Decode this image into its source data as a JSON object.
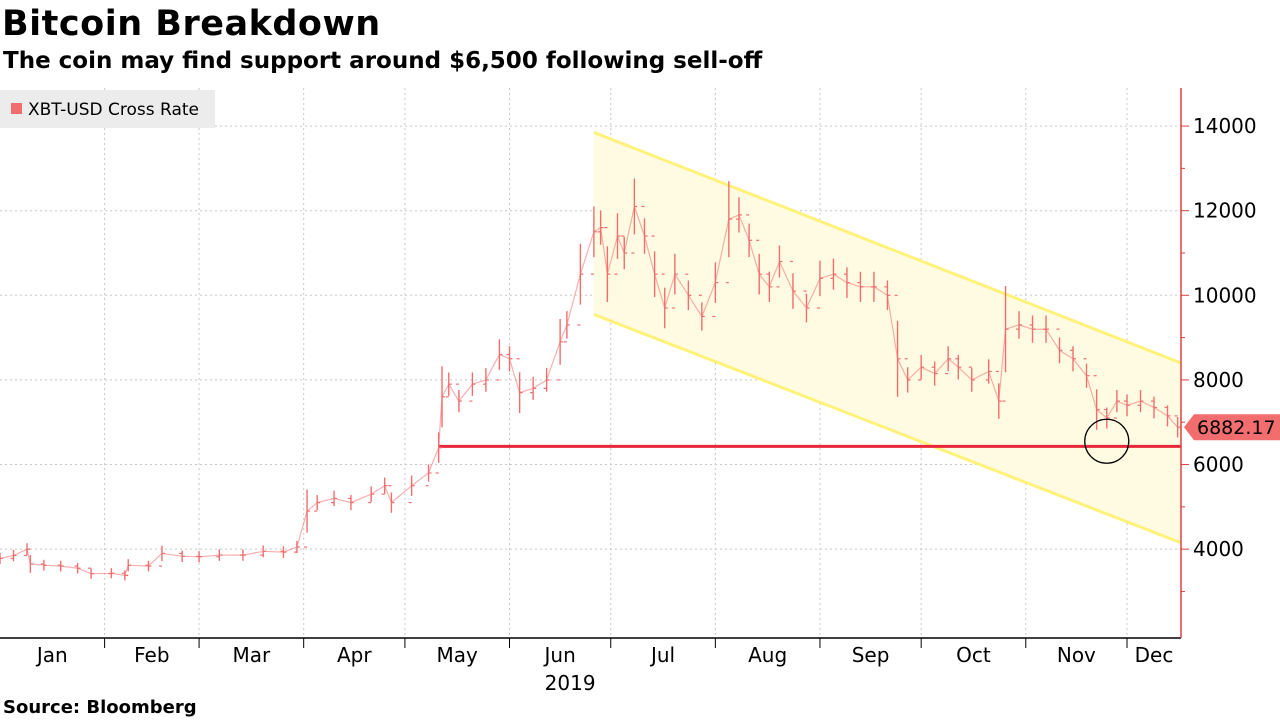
{
  "title": "Bitcoin Breakdown",
  "subtitle": "The coin may find support around $6,500 following sell-off",
  "source": "Source: Bloomberg",
  "colors": {
    "series": "#f26d6d",
    "support_line": "#e8273a",
    "channel_line": "#fff27a",
    "channel_fill": "#fffbe3",
    "grid": "#c8c8c8"
  },
  "chart_data": {
    "type": "line",
    "style": "ohlc-bars",
    "legend": {
      "position": "top-left",
      "entries": [
        "XBT-USD Cross Rate"
      ]
    },
    "year_label": "2019",
    "x_ticks": [
      "Jan",
      "Feb",
      "Mar",
      "Apr",
      "May",
      "Jun",
      "Jul",
      "Aug",
      "Sep",
      "Oct",
      "Nov",
      "Dec"
    ],
    "y_ticks": [
      "4000",
      "6000",
      "8000",
      "10000",
      "12000",
      "14000"
    ],
    "ylim": [
      1900,
      14900
    ],
    "xlim": [
      "2019-01-01",
      "2019-12-17"
    ],
    "grid": true,
    "last_value": "6882.17",
    "support_level": 6430,
    "channel": {
      "upper": {
        "start": [
          "2019-06-26",
          13850
        ],
        "end": [
          "2019-12-17",
          8400
        ]
      },
      "lower": {
        "start": [
          "2019-06-26",
          9550
        ],
        "end": [
          "2019-12-17",
          4150
        ]
      }
    },
    "annotations": [
      {
        "type": "circle",
        "date": "2019-11-25",
        "value": 6550
      }
    ],
    "series": [
      {
        "name": "XBT-USD Cross Rate",
        "points": [
          [
            "2019-01-01",
            3780
          ],
          [
            "2019-01-05",
            3850
          ],
          [
            "2019-01-09",
            4000
          ],
          [
            "2019-01-10",
            3650
          ],
          [
            "2019-01-14",
            3620
          ],
          [
            "2019-01-19",
            3600
          ],
          [
            "2019-01-24",
            3550
          ],
          [
            "2019-01-28",
            3420
          ],
          [
            "2019-02-03",
            3430
          ],
          [
            "2019-02-07",
            3380
          ],
          [
            "2019-02-08",
            3620
          ],
          [
            "2019-02-14",
            3600
          ],
          [
            "2019-02-18",
            3900
          ],
          [
            "2019-02-24",
            3830
          ],
          [
            "2019-03-01",
            3820
          ],
          [
            "2019-03-07",
            3860
          ],
          [
            "2019-03-14",
            3860
          ],
          [
            "2019-03-20",
            3950
          ],
          [
            "2019-03-26",
            3930
          ],
          [
            "2019-03-30",
            4050
          ],
          [
            "2019-04-02",
            4900
          ],
          [
            "2019-04-05",
            5100
          ],
          [
            "2019-04-10",
            5200
          ],
          [
            "2019-04-15",
            5100
          ],
          [
            "2019-04-21",
            5300
          ],
          [
            "2019-04-25",
            5500
          ],
          [
            "2019-04-27",
            5100
          ],
          [
            "2019-05-03",
            5500
          ],
          [
            "2019-05-08",
            5800
          ],
          [
            "2019-05-11",
            6400
          ],
          [
            "2019-05-12",
            7600
          ],
          [
            "2019-05-14",
            7900
          ],
          [
            "2019-05-17",
            7500
          ],
          [
            "2019-05-21",
            7900
          ],
          [
            "2019-05-25",
            8000
          ],
          [
            "2019-05-29",
            8600
          ],
          [
            "2019-06-01",
            8500
          ],
          [
            "2019-06-04",
            7700
          ],
          [
            "2019-06-08",
            7800
          ],
          [
            "2019-06-12",
            8000
          ],
          [
            "2019-06-16",
            8900
          ],
          [
            "2019-06-18",
            9300
          ],
          [
            "2019-06-22",
            10500
          ],
          [
            "2019-06-26",
            11500
          ],
          [
            "2019-06-28",
            11600
          ],
          [
            "2019-06-30",
            10500
          ],
          [
            "2019-07-03",
            11400
          ],
          [
            "2019-07-05",
            11000
          ],
          [
            "2019-07-08",
            12100
          ],
          [
            "2019-07-11",
            11400
          ],
          [
            "2019-07-14",
            10500
          ],
          [
            "2019-07-17",
            9700
          ],
          [
            "2019-07-20",
            10500
          ],
          [
            "2019-07-24",
            10000
          ],
          [
            "2019-07-28",
            9500
          ],
          [
            "2019-08-01",
            10300
          ],
          [
            "2019-08-05",
            11800
          ],
          [
            "2019-08-08",
            11900
          ],
          [
            "2019-08-11",
            11300
          ],
          [
            "2019-08-14",
            10500
          ],
          [
            "2019-08-17",
            10200
          ],
          [
            "2019-08-20",
            10800
          ],
          [
            "2019-08-24",
            10100
          ],
          [
            "2019-08-28",
            9700
          ],
          [
            "2019-09-01",
            10400
          ],
          [
            "2019-09-05",
            10500
          ],
          [
            "2019-09-09",
            10300
          ],
          [
            "2019-09-13",
            10200
          ],
          [
            "2019-09-17",
            10200
          ],
          [
            "2019-09-21",
            10000
          ],
          [
            "2019-09-24",
            8500
          ],
          [
            "2019-09-27",
            8000
          ],
          [
            "2019-10-01",
            8300
          ],
          [
            "2019-10-05",
            8150
          ],
          [
            "2019-10-09",
            8500
          ],
          [
            "2019-10-12",
            8300
          ],
          [
            "2019-10-16",
            8000
          ],
          [
            "2019-10-21",
            8200
          ],
          [
            "2019-10-24",
            7500
          ],
          [
            "2019-10-26",
            9200
          ],
          [
            "2019-10-30",
            9300
          ],
          [
            "2019-11-03",
            9200
          ],
          [
            "2019-11-07",
            9200
          ],
          [
            "2019-11-11",
            8700
          ],
          [
            "2019-11-15",
            8500
          ],
          [
            "2019-11-19",
            8100
          ],
          [
            "2019-11-22",
            7300
          ],
          [
            "2019-11-25",
            7100
          ],
          [
            "2019-11-28",
            7500
          ],
          [
            "2019-12-01",
            7400
          ],
          [
            "2019-12-05",
            7500
          ],
          [
            "2019-12-09",
            7350
          ],
          [
            "2019-12-13",
            7150
          ],
          [
            "2019-12-16",
            6882
          ]
        ]
      }
    ]
  }
}
